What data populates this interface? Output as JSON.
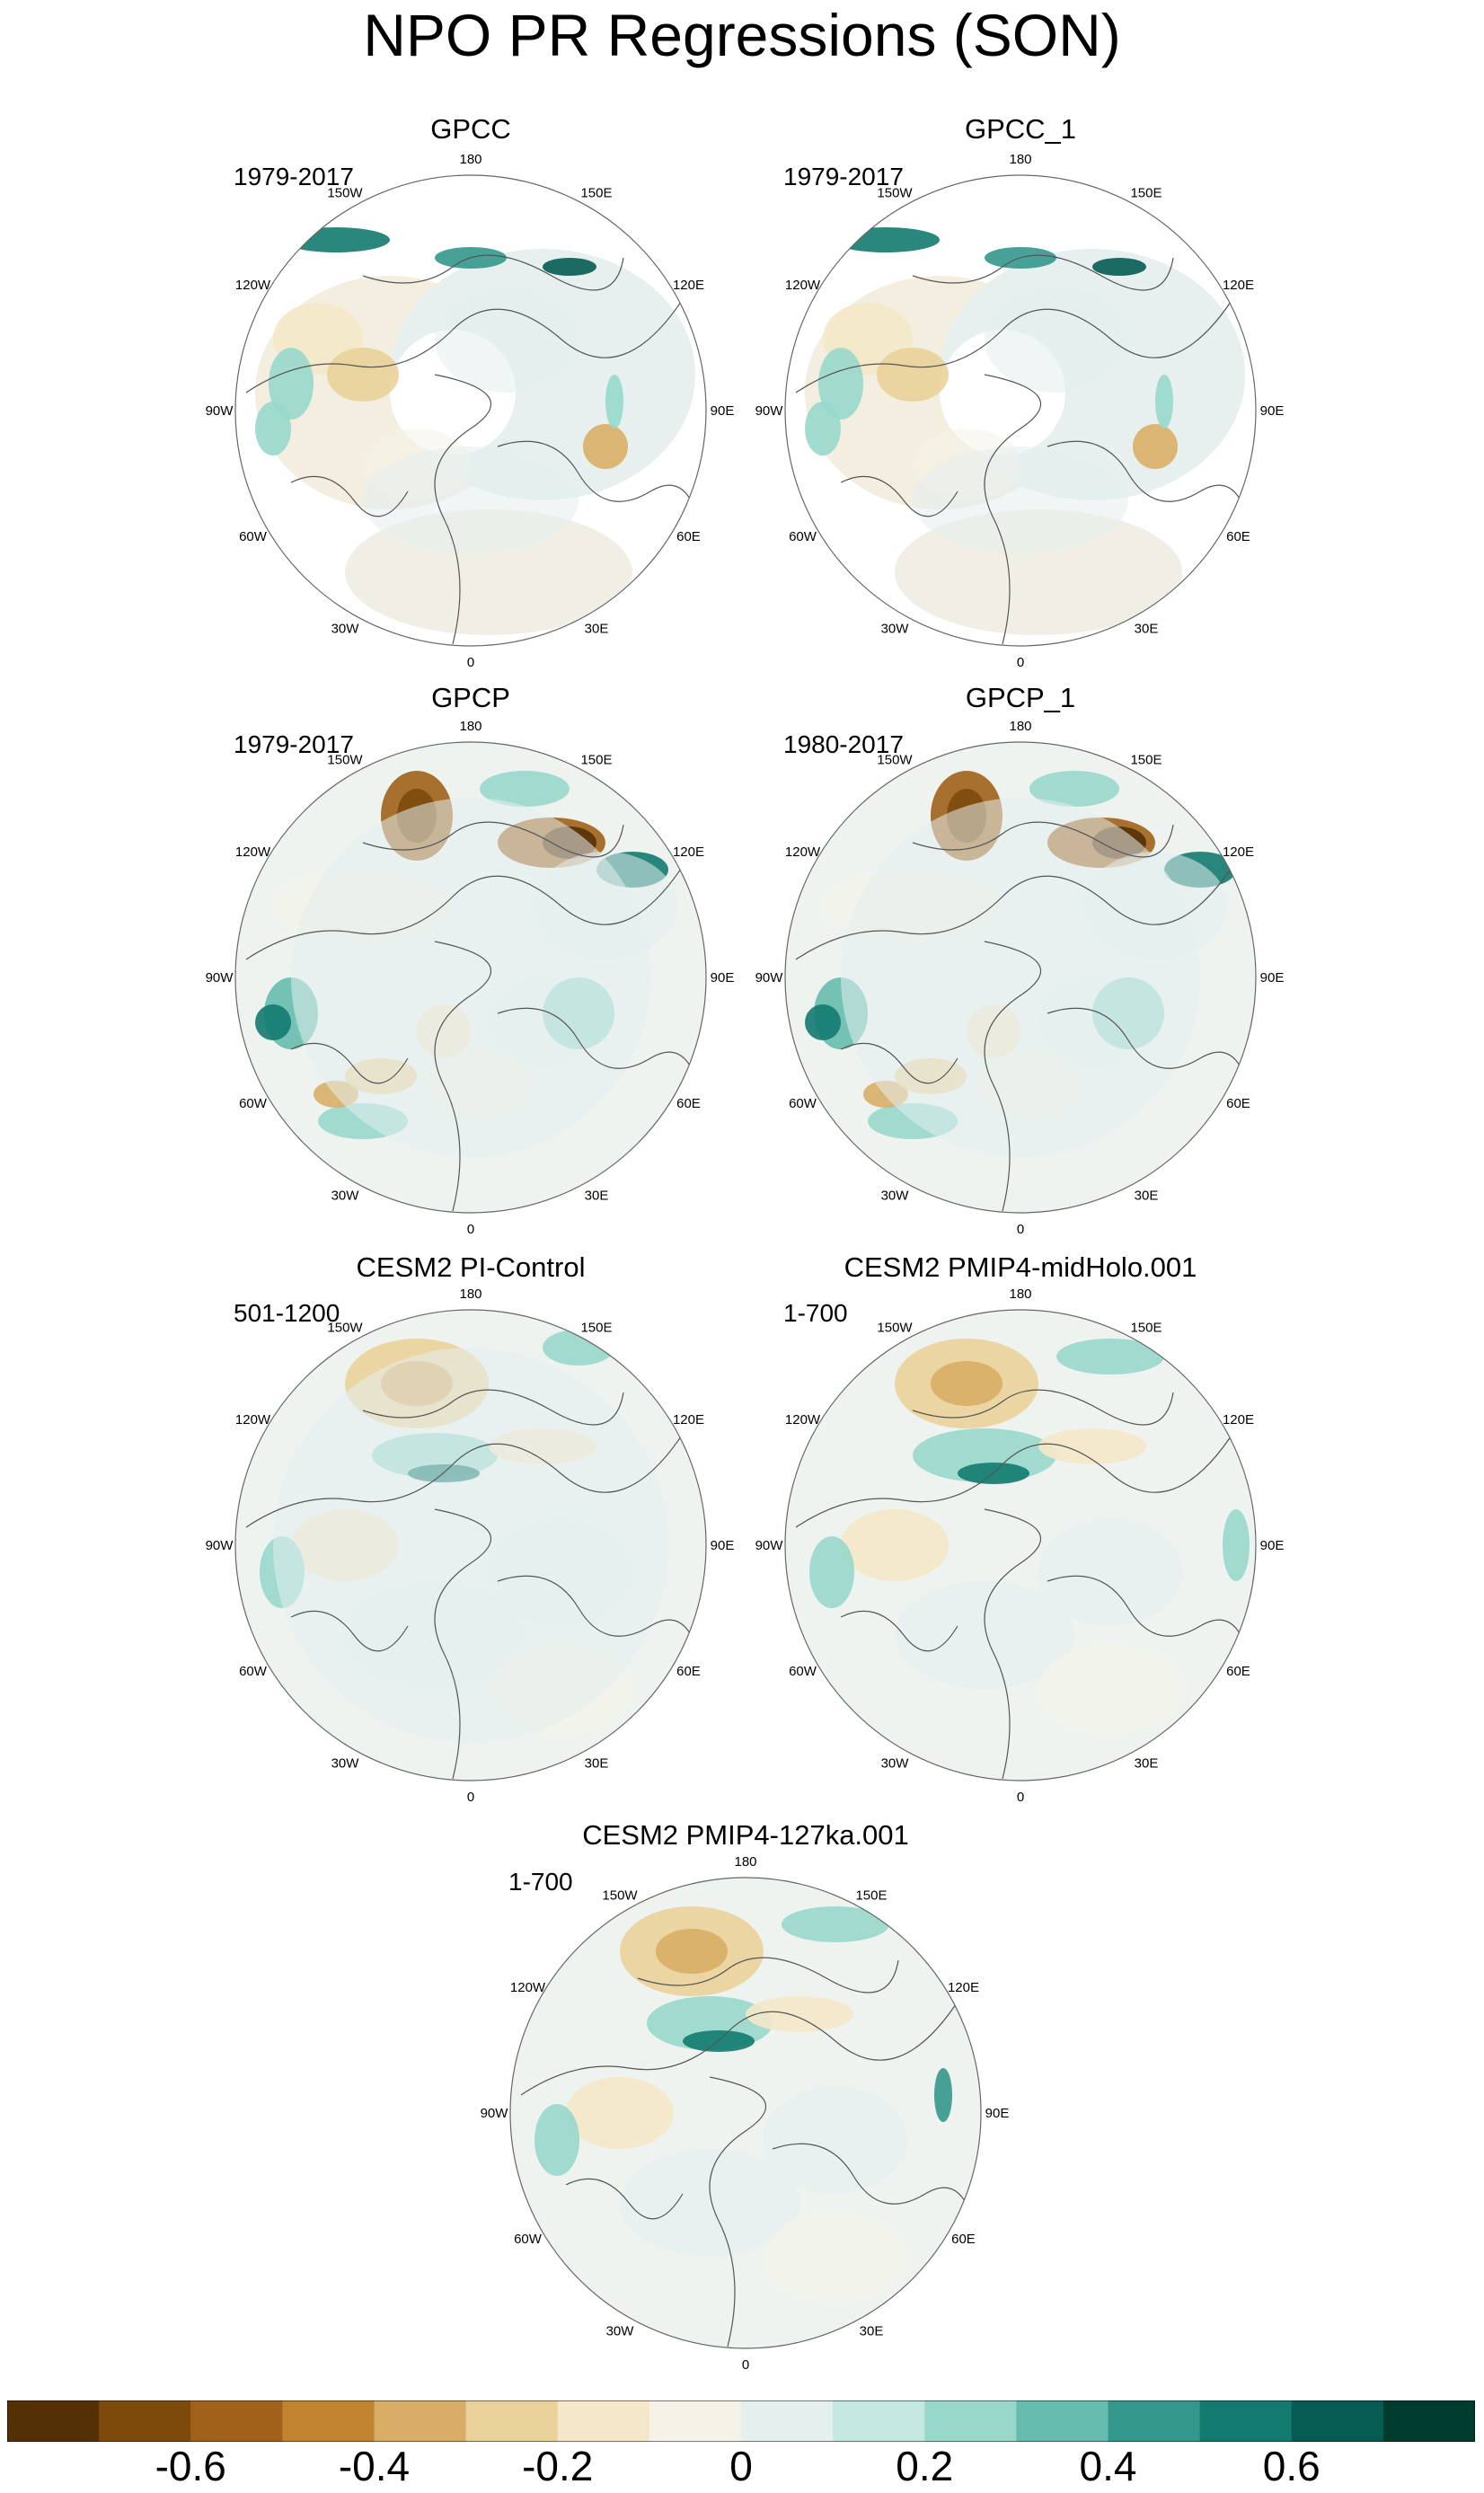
{
  "title": "NPO PR Regressions (SON)",
  "longitude_labels": [
    "180",
    "150E",
    "120E",
    "90E",
    "60E",
    "30E",
    "0",
    "30W",
    "60W",
    "90W",
    "120W",
    "150W"
  ],
  "panels": [
    {
      "id": "gpcc",
      "title": "GPCC",
      "period": "1979-2017",
      "data_coverage": "land-only"
    },
    {
      "id": "gpcc_1",
      "title": "GPCC_1",
      "period": "1979-2017",
      "data_coverage": "land-only"
    },
    {
      "id": "gpcp",
      "title": "GPCP",
      "period": "1979-2017",
      "data_coverage": "global"
    },
    {
      "id": "gpcp_1",
      "title": "GPCP_1",
      "period": "1980-2017",
      "data_coverage": "global"
    },
    {
      "id": "cesm2_pi",
      "title": "CESM2 PI-Control",
      "period": "501-1200",
      "data_coverage": "global"
    },
    {
      "id": "cesm2_midholo",
      "title": "CESM2 PMIP4-midHolo.001",
      "period": "1-700",
      "data_coverage": "global"
    },
    {
      "id": "cesm2_127ka",
      "title": "CESM2 PMIP4-127ka.001",
      "period": "1-700",
      "data_coverage": "global"
    }
  ],
  "colorbar": {
    "colors": [
      "#543005",
      "#7d4a0c",
      "#a0621a",
      "#c0842e",
      "#d8ae66",
      "#e9d19a",
      "#f4e8c8",
      "#f5f2e8",
      "#e4efee",
      "#c3e8e0",
      "#98d8cb",
      "#65bcad",
      "#33978b",
      "#137a6f",
      "#045c52",
      "#003c30"
    ],
    "tick_labels": [
      "-0.6",
      "-0.4",
      "-0.2",
      "0",
      "0.2",
      "0.4",
      "0.6"
    ],
    "tick_values": [
      -0.6,
      -0.4,
      -0.2,
      0,
      0.2,
      0.4,
      0.6
    ]
  }
}
